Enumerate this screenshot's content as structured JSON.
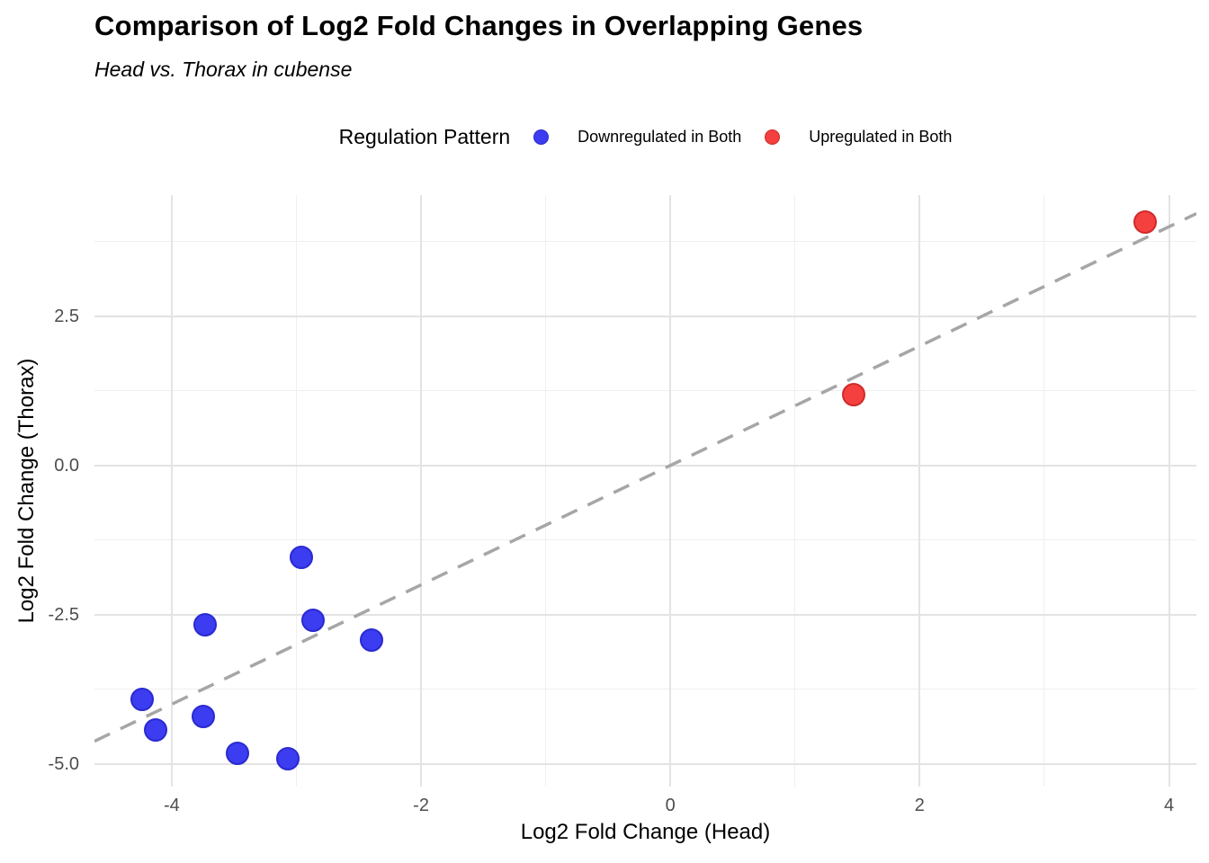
{
  "title": "Comparison of Log2 Fold Changes in Overlapping Genes",
  "subtitle": "Head vs. Thorax in cubense",
  "legend": {
    "title": "Regulation Pattern",
    "position": "top-center",
    "items": [
      {
        "label": "Downregulated in Both",
        "color": "#3c3cf0",
        "border_color": "#2a2ad0"
      },
      {
        "label": "Upregulated in Both",
        "color": "#f54040",
        "border_color": "#d02a2a"
      }
    ]
  },
  "chart_data": {
    "type": "scatter",
    "title": "Comparison of Log2 Fold Changes in Overlapping Genes",
    "subtitle": "Head vs. Thorax in cubense",
    "xlabel": "Log2 Fold Change (Head)",
    "ylabel": "Log2 Fold Change (Thorax)",
    "xlim": [
      -4.62,
      4.22
    ],
    "ylim": [
      -5.38,
      4.53
    ],
    "x_major_ticks": [
      -4,
      -2,
      0,
      2,
      4
    ],
    "x_tick_labels": [
      "-4",
      "-2",
      "0",
      "2",
      "4"
    ],
    "x_minor_ticks": [
      -3,
      -1,
      1,
      3
    ],
    "y_major_ticks": [
      2.5,
      0.0,
      -2.5,
      -5.0
    ],
    "y_tick_labels": [
      "2.5",
      "0.0",
      "-2.5",
      "-5.0"
    ],
    "y_minor_ticks": [
      3.75,
      1.25,
      -1.25,
      -3.75
    ],
    "grid": true,
    "legend_position": "top",
    "reference_line": {
      "type": "identity y = x",
      "style": "dashed",
      "color": "#a6a6a6"
    },
    "series": [
      {
        "name": "Downregulated in Both",
        "color": "#3c3cf0",
        "border_color": "#2a2ad0",
        "points": [
          [
            -2.96,
            -1.54
          ],
          [
            -3.73,
            -2.67
          ],
          [
            -2.87,
            -2.59
          ],
          [
            -2.4,
            -2.92
          ],
          [
            -4.24,
            -3.92
          ],
          [
            -4.13,
            -4.43
          ],
          [
            -3.75,
            -4.2
          ],
          [
            -3.47,
            -4.82
          ],
          [
            -3.07,
            -4.92
          ]
        ]
      },
      {
        "name": "Upregulated in Both",
        "color": "#f54040",
        "border_color": "#d02a2a",
        "points": [
          [
            1.47,
            1.19
          ],
          [
            3.81,
            4.08
          ]
        ]
      }
    ]
  }
}
